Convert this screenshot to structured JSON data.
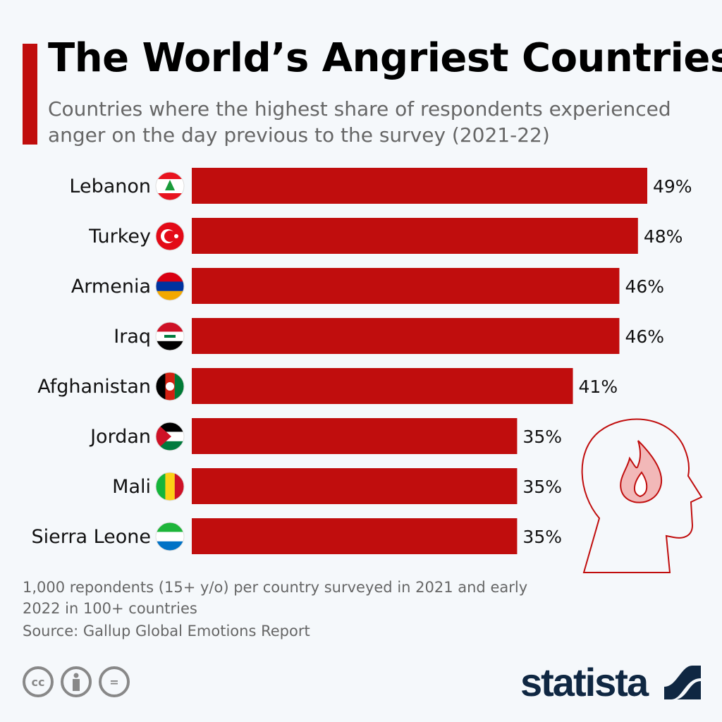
{
  "title": "The World’s Angriest Countries",
  "subtitle": "Countries where the highest share of respondents experienced anger on the day previous to the survey (2021-22)",
  "chart_data": {
    "type": "bar",
    "orientation": "horizontal",
    "categories": [
      "Lebanon",
      "Turkey",
      "Armenia",
      "Iraq",
      "Afghanistan",
      "Jordan",
      "Mali",
      "Sierra Leone"
    ],
    "values": [
      49,
      48,
      46,
      46,
      41,
      35,
      35,
      35
    ],
    "labels": [
      "49%",
      "48%",
      "46%",
      "46%",
      "41%",
      "35%",
      "35%",
      "35%"
    ],
    "unit": "%",
    "bar_color": "#c00d0d",
    "grid": false,
    "xlim": [
      0,
      49
    ]
  },
  "flags": [
    "lebanon-flag",
    "turkey-flag",
    "armenia-flag",
    "iraq-flag",
    "afghanistan-flag",
    "jordan-flag",
    "mali-flag",
    "sierra-leone-flag"
  ],
  "note": "1,000 repondents (15+ y/o) per country surveyed in 2021 and early 2022 in 100+ countries",
  "source": "Source: Gallup Global Emotions Report",
  "license_icons": [
    "cc-icon",
    "by-icon",
    "nd-icon"
  ],
  "license_labels": {
    "cc": "cc",
    "nd": "="
  },
  "brand": "statista"
}
